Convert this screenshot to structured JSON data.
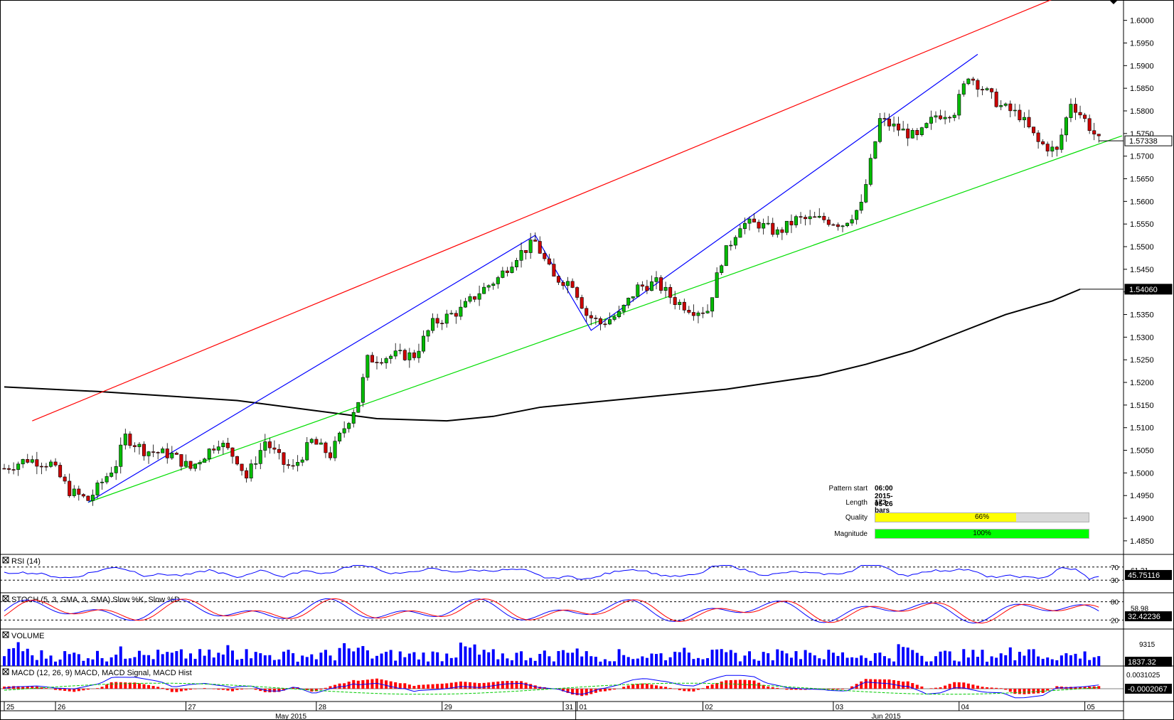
{
  "chart_data": {
    "type": "candlestick",
    "price_axis": {
      "ticks": [
        "1.6000",
        "1.5950",
        "1.5900",
        "1.5850",
        "1.5800",
        "1.5750",
        "1.5700",
        "1.5650",
        "1.5600",
        "1.5550",
        "1.5500",
        "1.5450",
        "1.5400",
        "1.5350",
        "1.5300",
        "1.5250",
        "1.5200",
        "1.5150",
        "1.5100",
        "1.5050",
        "1.5000",
        "1.4950",
        "1.4900",
        "1.4850"
      ],
      "current_price_label": "1.57338",
      "ma_label": "1.54060",
      "ylim": [
        1.482,
        1.6045
      ]
    },
    "x_axis": {
      "day_labels": [
        "25",
        "26",
        "27",
        "28",
        "29",
        "31",
        "01",
        "02",
        "03",
        "04",
        "05"
      ],
      "month_labels": [
        "May 2015",
        "Jun 2015"
      ]
    },
    "pattern": {
      "start_label": "Pattern start",
      "start_value": "06:00 2015-05-26",
      "length_label": "Length",
      "length_value": "173 bars",
      "quality_label": "Quality",
      "quality_value": "66%",
      "quality_fraction": 0.66,
      "magnitude_label": "Magnitude",
      "magnitude_value": "100%",
      "magnitude_fraction": 1.0,
      "upper_line": {
        "from": [
          6,
          1.5115
        ],
        "to": [
          227,
          1.6055
        ]
      },
      "lower_line": {
        "from": [
          18,
          1.4935
        ],
        "to": [
          240,
          1.5745
        ]
      },
      "zigzag": [
        [
          18,
          1.4935
        ],
        [
          114,
          1.5525
        ],
        [
          126,
          1.5315
        ],
        [
          209,
          1.5925
        ]
      ]
    },
    "moving_average": [
      [
        0,
        1.519
      ],
      [
        20,
        1.518
      ],
      [
        35,
        1.517
      ],
      [
        50,
        1.516
      ],
      [
        65,
        1.514
      ],
      [
        80,
        1.512
      ],
      [
        95,
        1.5115
      ],
      [
        105,
        1.5125
      ],
      [
        115,
        1.5145
      ],
      [
        130,
        1.516
      ],
      [
        145,
        1.5175
      ],
      [
        155,
        1.5185
      ],
      [
        165,
        1.52
      ],
      [
        175,
        1.5215
      ],
      [
        185,
        1.524
      ],
      [
        195,
        1.527
      ],
      [
        205,
        1.531
      ],
      [
        215,
        1.535
      ],
      [
        225,
        1.538
      ],
      [
        231,
        1.5406
      ]
    ],
    "ohlc_keypoints": [
      [
        0,
        1.501
      ],
      [
        5,
        1.503
      ],
      [
        10,
        1.502
      ],
      [
        14,
        1.496
      ],
      [
        18,
        1.494
      ],
      [
        24,
        1.502
      ],
      [
        26,
        1.508
      ],
      [
        30,
        1.505
      ],
      [
        36,
        1.504
      ],
      [
        40,
        1.501
      ],
      [
        46,
        1.507
      ],
      [
        50,
        1.503
      ],
      [
        52,
        1.499
      ],
      [
        56,
        1.507
      ],
      [
        60,
        1.502
      ],
      [
        62,
        1.501
      ],
      [
        66,
        1.507
      ],
      [
        70,
        1.504
      ],
      [
        76,
        1.516
      ],
      [
        78,
        1.525
      ],
      [
        84,
        1.526
      ],
      [
        88,
        1.526
      ],
      [
        92,
        1.533
      ],
      [
        98,
        1.536
      ],
      [
        102,
        1.54
      ],
      [
        106,
        1.543
      ],
      [
        110,
        1.548
      ],
      [
        114,
        1.551
      ],
      [
        118,
        1.543
      ],
      [
        122,
        1.542
      ],
      [
        125,
        1.535
      ],
      [
        128,
        1.533
      ],
      [
        132,
        1.535
      ],
      [
        136,
        1.541
      ],
      [
        140,
        1.542
      ],
      [
        144,
        1.538
      ],
      [
        148,
        1.536
      ],
      [
        151,
        1.536
      ],
      [
        154,
        1.547
      ],
      [
        158,
        1.555
      ],
      [
        162,
        1.555
      ],
      [
        166,
        1.553
      ],
      [
        170,
        1.556
      ],
      [
        176,
        1.556
      ],
      [
        180,
        1.555
      ],
      [
        184,
        1.559
      ],
      [
        188,
        1.578
      ],
      [
        192,
        1.576
      ],
      [
        196,
        1.574
      ],
      [
        200,
        1.579
      ],
      [
        204,
        1.58
      ],
      [
        207,
        1.588
      ],
      [
        210,
        1.585
      ],
      [
        214,
        1.581
      ],
      [
        218,
        1.579
      ],
      [
        222,
        1.573
      ],
      [
        226,
        1.571
      ],
      [
        229,
        1.582
      ],
      [
        232,
        1.578
      ],
      [
        235,
        1.5734
      ]
    ],
    "indicators": {
      "rsi": {
        "label": "RSI (14)",
        "levels": [
          "70",
          "30"
        ],
        "value_label": "45.75116",
        "mid_label": "61.31"
      },
      "stoch": {
        "label": "STOCH (5, 3, SMA, 3, SMA)",
        "series": [
          "Slow %K",
          "Slow %D"
        ],
        "levels": [
          "80",
          "20"
        ],
        "value_label": "32.42236",
        "mid_label": "58.98"
      },
      "volume": {
        "label": "VOLUME",
        "tick_label": "9315",
        "value_label": "1837.32"
      },
      "macd": {
        "label": "MACD (12, 26, 9)",
        "series": [
          "MACD",
          "MACD Signal",
          "MACD Hist"
        ],
        "tick_label": "0.0031025",
        "value_label": "-0.0002067"
      }
    },
    "colors": {
      "bull": "#00bb00",
      "bear": "#cc0000",
      "upper_line": "#ff0000",
      "lower_line": "#00dd00",
      "zigzag": "#0000ff",
      "ma": "#000000",
      "quality": "#ffff00",
      "magnitude": "#00ff00"
    }
  }
}
